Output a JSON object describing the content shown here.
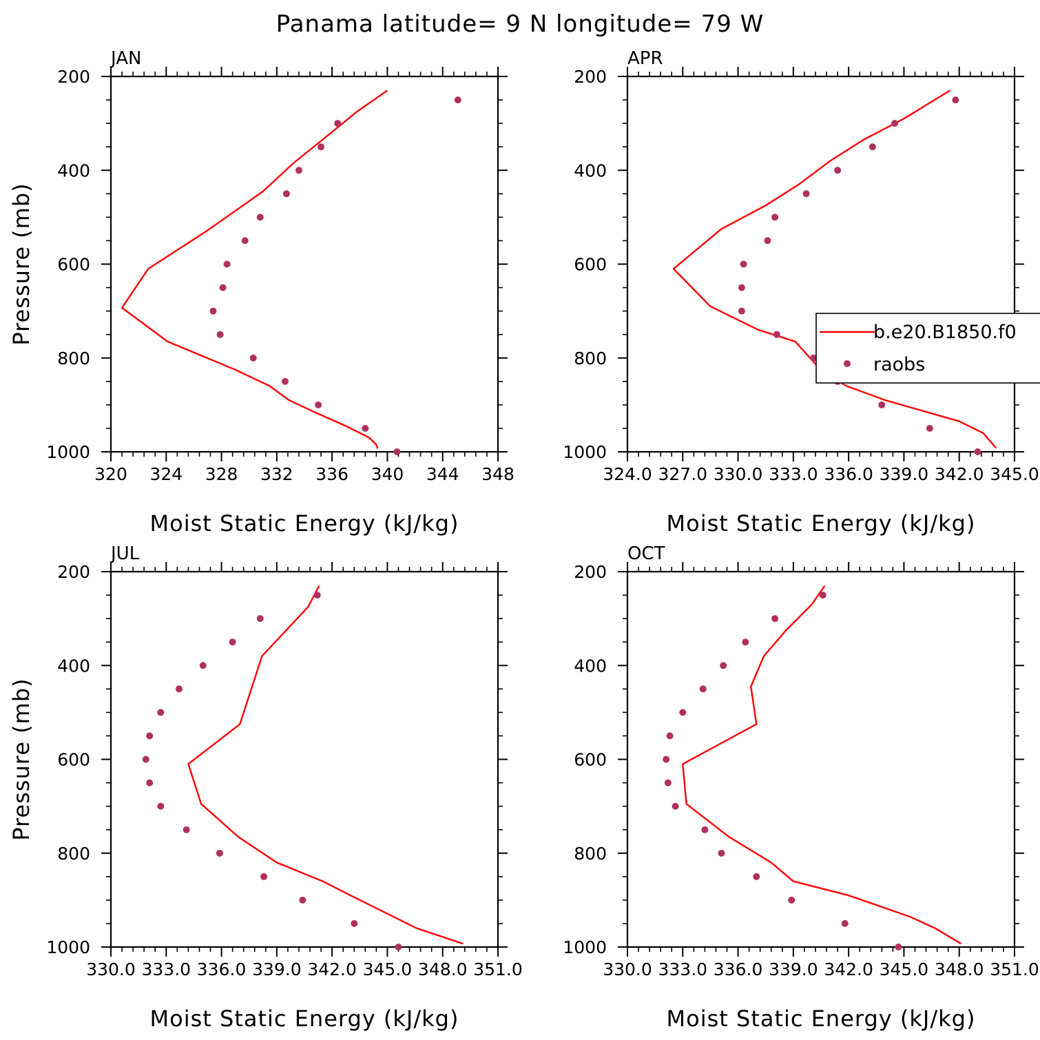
{
  "figure_title": "Panama  latitude= 9 N longitude= 79 W",
  "chart_data": [
    {
      "type": "line",
      "title": "JAN",
      "xlabel": "Moist Static Energy (kJ/kg)",
      "ylabel": "Pressure (mb)",
      "xlim": [
        320,
        348
      ],
      "ylim": [
        1000,
        200
      ],
      "xticks": [
        320,
        324,
        328,
        332,
        336,
        340,
        344,
        348
      ],
      "xtick_labels": [
        "320",
        "324",
        "328",
        "332",
        "336",
        "340",
        "344",
        "348"
      ],
      "yticks": [
        200,
        400,
        600,
        800,
        1000
      ],
      "ytick_labels": [
        "200",
        "400",
        "600",
        "800",
        "1000"
      ],
      "series": [
        {
          "name": "b.e20.B1850.f0",
          "kind": "line",
          "color": "#ff0000",
          "x": [
            340.0,
            337.8,
            335.3,
            333.2,
            331.0,
            326.9,
            322.7,
            320.8,
            324.1,
            329.0,
            331.5,
            332.9,
            334.7,
            337.0,
            338.7,
            339.2,
            339.3
          ],
          "y": [
            230,
            275,
            335,
            385,
            445,
            530,
            610,
            693,
            765,
            825,
            860,
            890,
            915,
            945,
            970,
            985,
            993
          ]
        },
        {
          "name": "raobs",
          "kind": "scatter",
          "color": "#b03060",
          "x": [
            345.1,
            336.4,
            335.2,
            333.6,
            332.7,
            330.8,
            329.7,
            328.4,
            328.1,
            327.4,
            327.9,
            330.3,
            332.6,
            335.0,
            338.4,
            340.7
          ],
          "y": [
            250,
            300,
            350,
            400,
            450,
            500,
            550,
            600,
            650,
            700,
            750,
            800,
            850,
            900,
            950,
            1000
          ]
        }
      ]
    },
    {
      "type": "line",
      "title": "APR",
      "xlabel": "Moist Static Energy (kJ/kg)",
      "ylabel": "",
      "xlim": [
        324.0,
        345.0
      ],
      "ylim": [
        1000,
        200
      ],
      "xticks": [
        324,
        327,
        330,
        333,
        336,
        339,
        342,
        345
      ],
      "xtick_labels": [
        "324.0",
        "327.0",
        "330.0",
        "333.0",
        "336.0",
        "339.0",
        "342.0",
        "345.0"
      ],
      "yticks": [
        200,
        400,
        600,
        800,
        1000
      ],
      "ytick_labels": [
        "200",
        "400",
        "600",
        "800",
        "1000"
      ],
      "legend": {
        "entries": [
          "b.e20.B1850.f0",
          "raobs"
        ]
      },
      "series": [
        {
          "name": "b.e20.B1850.f0",
          "kind": "line",
          "color": "#ff0000",
          "x": [
            341.5,
            339.0,
            336.8,
            335.0,
            333.3,
            331.5,
            329.1,
            326.5,
            328.5,
            331.1,
            333.1,
            334.6,
            335.9,
            338.0,
            342.0,
            343.3,
            344.0
          ],
          "y": [
            230,
            290,
            335,
            380,
            430,
            475,
            525,
            610,
            690,
            740,
            765,
            830,
            860,
            890,
            935,
            960,
            992
          ]
        },
        {
          "name": "raobs",
          "kind": "scatter",
          "color": "#b03060",
          "x": [
            341.8,
            338.5,
            337.3,
            335.4,
            333.7,
            332.0,
            331.6,
            330.3,
            330.2,
            330.2,
            332.1,
            334.1,
            335.4,
            337.8,
            340.4,
            343.0
          ],
          "y": [
            250,
            300,
            350,
            400,
            450,
            500,
            550,
            600,
            650,
            700,
            750,
            800,
            850,
            900,
            950,
            1000
          ]
        }
      ]
    },
    {
      "type": "line",
      "title": "JUL",
      "xlabel": "Moist Static Energy (kJ/kg)",
      "ylabel": "Pressure (mb)",
      "xlim": [
        330.0,
        351.0
      ],
      "ylim": [
        1000,
        200
      ],
      "xticks": [
        330,
        333,
        336,
        339,
        342,
        345,
        348,
        351
      ],
      "xtick_labels": [
        "330.0",
        "333.0",
        "336.0",
        "339.0",
        "342.0",
        "345.0",
        "348.0",
        "351.0"
      ],
      "yticks": [
        200,
        400,
        600,
        800,
        1000
      ],
      "ytick_labels": [
        "200",
        "400",
        "600",
        "800",
        "1000"
      ],
      "series": [
        {
          "name": "b.e20.B1850.f0",
          "kind": "line",
          "color": "#ff0000",
          "x": [
            341.3,
            340.7,
            338.2,
            337.0,
            334.2,
            334.9,
            336.9,
            339.0,
            341.5,
            343.0,
            346.6,
            349.1
          ],
          "y": [
            230,
            275,
            380,
            525,
            610,
            695,
            765,
            820,
            860,
            890,
            960,
            993
          ]
        },
        {
          "name": "raobs",
          "kind": "scatter",
          "color": "#b03060",
          "x": [
            341.2,
            338.1,
            336.6,
            335.0,
            333.7,
            332.7,
            332.1,
            331.9,
            332.1,
            332.7,
            334.1,
            335.9,
            338.3,
            340.4,
            343.2,
            345.6
          ],
          "y": [
            250,
            300,
            350,
            400,
            450,
            500,
            550,
            600,
            650,
            700,
            750,
            800,
            850,
            900,
            950,
            1000
          ]
        }
      ]
    },
    {
      "type": "line",
      "title": "OCT",
      "xlabel": "Moist Static Energy (kJ/kg)",
      "ylabel": "",
      "xlim": [
        330.0,
        351.0
      ],
      "ylim": [
        1000,
        200
      ],
      "xticks": [
        330,
        333,
        336,
        339,
        342,
        345,
        348,
        351
      ],
      "xtick_labels": [
        "330.0",
        "333.0",
        "336.0",
        "339.0",
        "342.0",
        "345.0",
        "348.0",
        "351.0"
      ],
      "yticks": [
        200,
        400,
        600,
        800,
        1000
      ],
      "ytick_labels": [
        "200",
        "400",
        "600",
        "800",
        "1000"
      ],
      "series": [
        {
          "name": "b.e20.B1850.f0",
          "kind": "line",
          "color": "#ff0000",
          "x": [
            340.7,
            340.0,
            338.6,
            337.4,
            336.7,
            337.0,
            333.0,
            333.2,
            335.5,
            337.8,
            339.0,
            342.0,
            345.3,
            346.7,
            348.1
          ],
          "y": [
            230,
            270,
            325,
            380,
            445,
            525,
            610,
            695,
            765,
            820,
            860,
            890,
            935,
            960,
            993
          ]
        },
        {
          "name": "raobs",
          "kind": "scatter",
          "color": "#b03060",
          "x": [
            340.6,
            338.0,
            336.4,
            335.2,
            334.1,
            333.0,
            332.3,
            332.1,
            332.2,
            332.6,
            334.2,
            335.1,
            337.0,
            338.9,
            341.8,
            344.7
          ],
          "y": [
            250,
            300,
            350,
            400,
            450,
            500,
            550,
            600,
            650,
            700,
            750,
            800,
            850,
            900,
            950,
            1000
          ]
        }
      ]
    }
  ]
}
